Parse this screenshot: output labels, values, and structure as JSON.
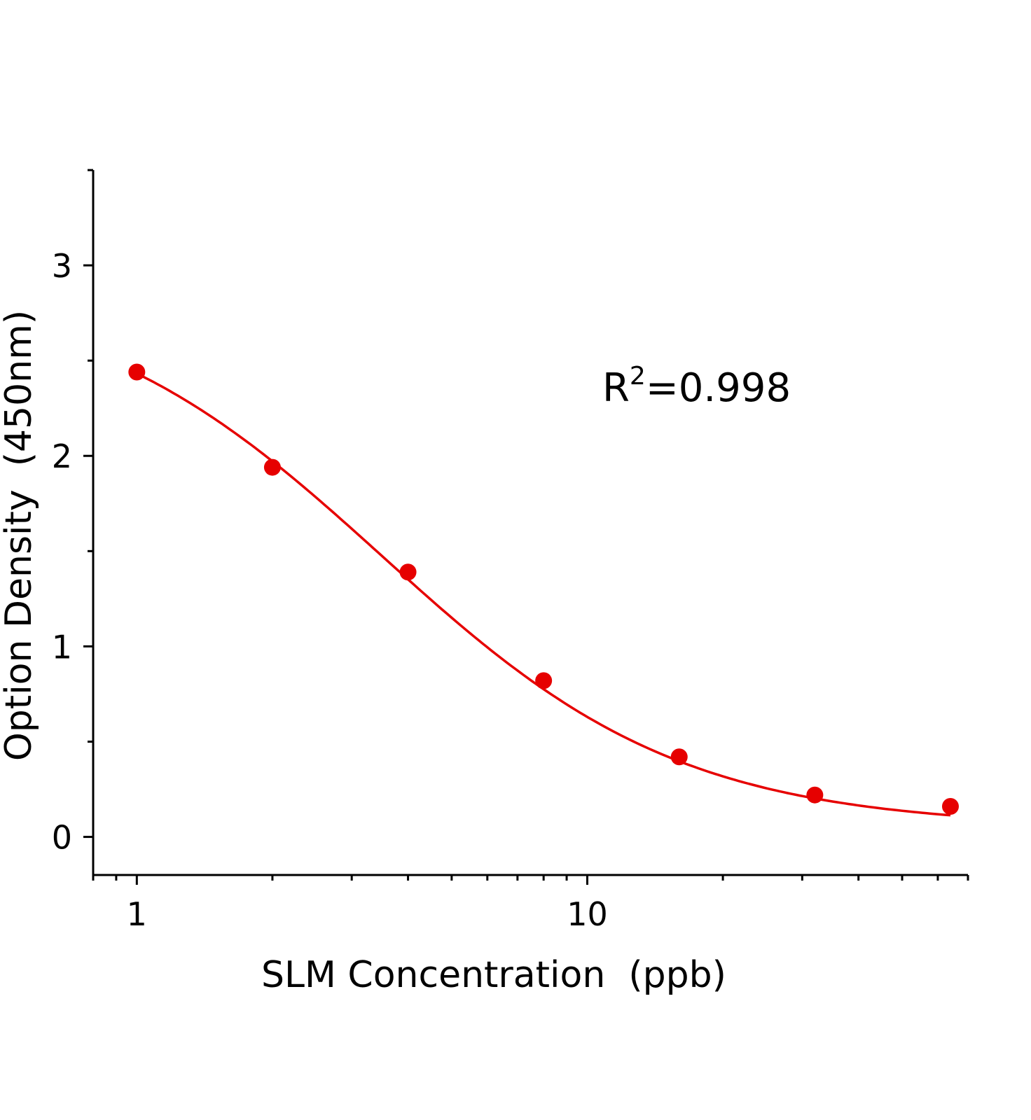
{
  "chart_data": {
    "type": "scatter",
    "title": "",
    "xlabel": "SLM Concentration  (ppb)",
    "ylabel": "Option Density  (450nm)",
    "xscale": "log",
    "xlim": [
      0.8,
      70
    ],
    "ylim": [
      -0.2,
      3.5
    ],
    "xticks": [
      1,
      10
    ],
    "xtick_labels": [
      "1",
      "10"
    ],
    "yticks": [
      0,
      1,
      2,
      3
    ],
    "ytick_labels": [
      "0",
      "1",
      "2",
      "3"
    ],
    "grid": false,
    "legend": "none",
    "annotation": {
      "base": "R",
      "sup": "2",
      "rest": "=0.998"
    },
    "series": [
      {
        "x": [
          1,
          2,
          4,
          8,
          16,
          32,
          64
        ],
        "y": [
          2.44,
          1.94,
          1.39,
          0.82,
          0.42,
          0.22,
          0.16
        ],
        "marker": "circle",
        "fit_curve": "four-parameter logistic",
        "color": "#e60000"
      }
    ]
  }
}
